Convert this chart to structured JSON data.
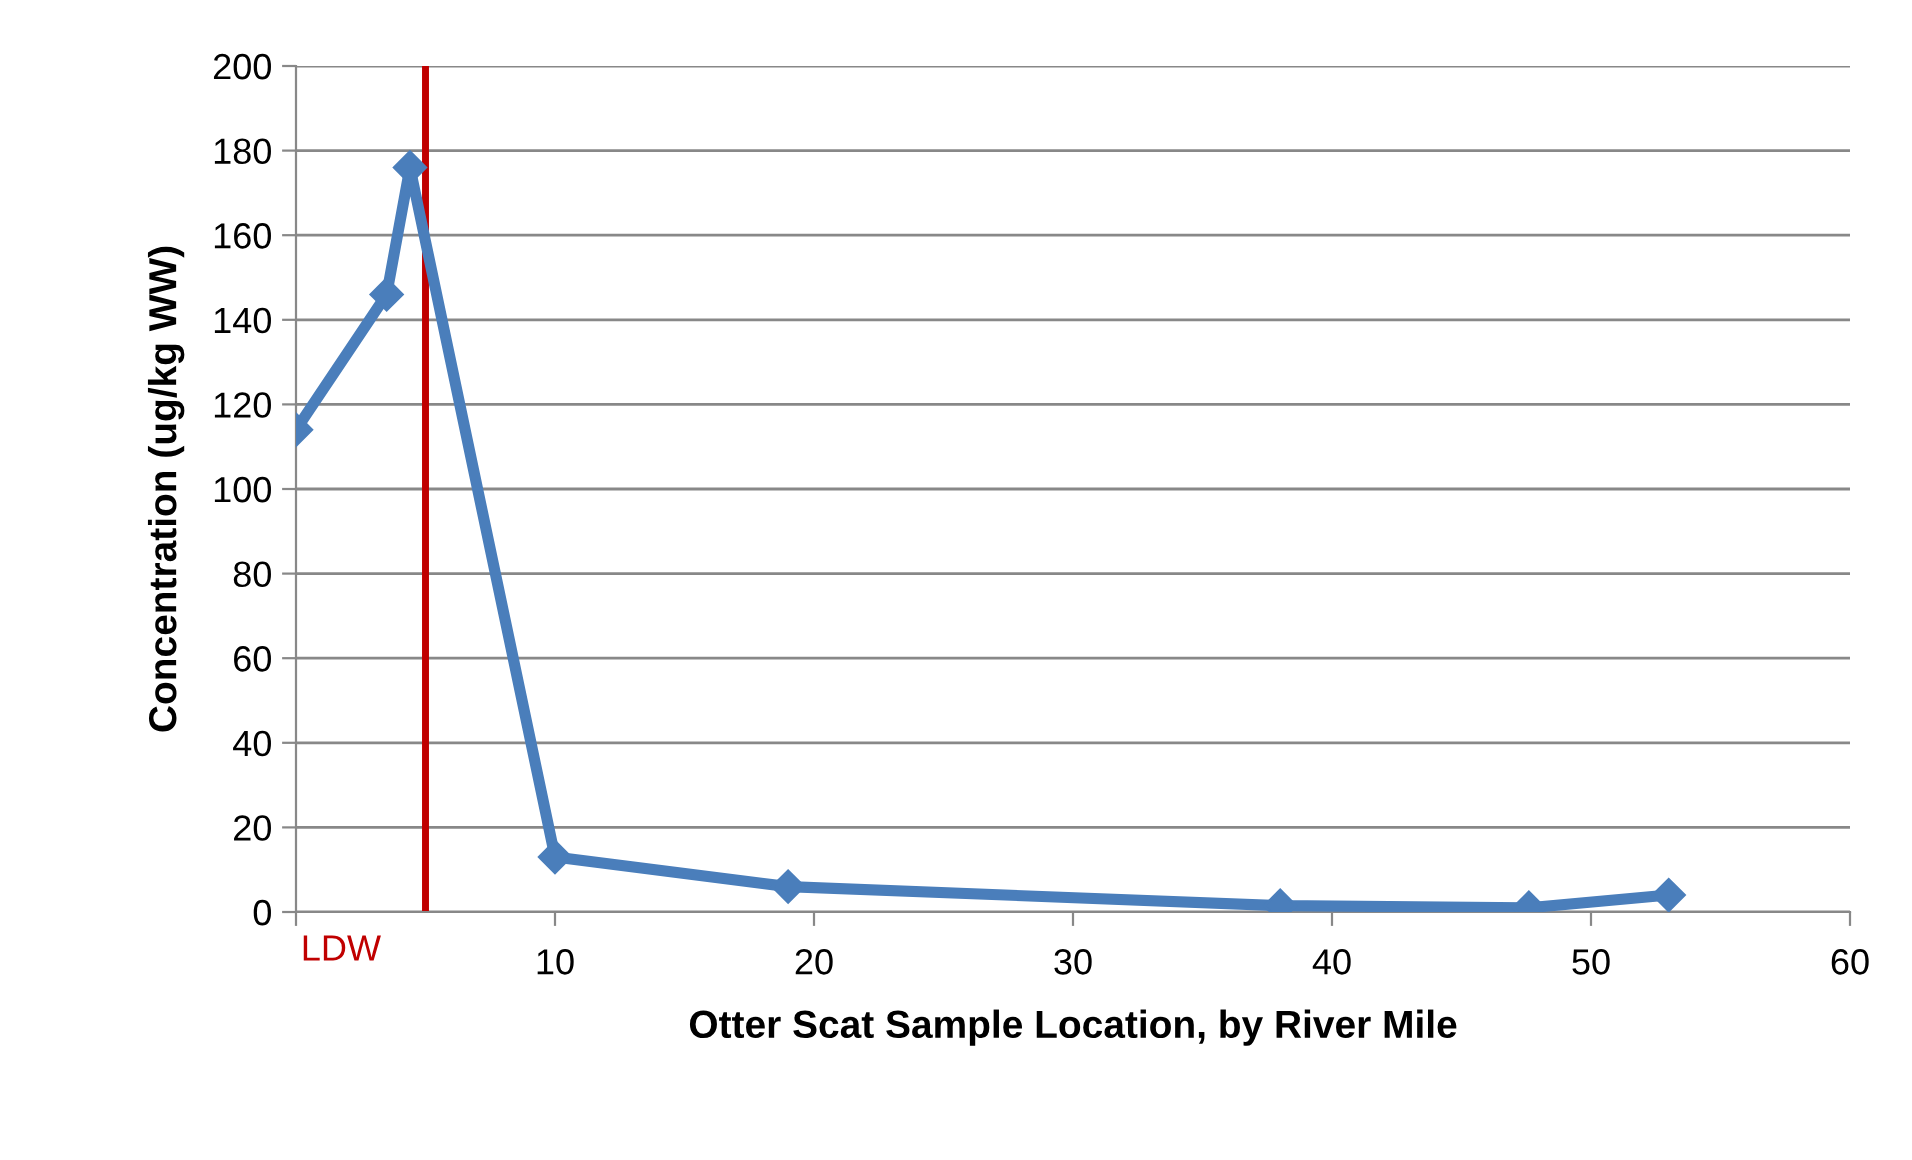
{
  "chart_data": {
    "type": "line",
    "xlabel": "Otter Scat Sample Location, by River Mile",
    "ylabel": "Concentration (ug/kg WW)",
    "x": [
      0,
      3.5,
      4.4,
      10,
      19,
      38,
      47.6,
      53
    ],
    "series": [
      {
        "color": "#4a7ebb",
        "values": [
          114,
          146,
          176,
          13,
          6,
          1.5,
          1,
          4
        ]
      }
    ],
    "xlim": [
      0,
      60
    ],
    "xticks": [
      {
        "value": 0,
        "label": null
      },
      10,
      20,
      30,
      40,
      50,
      60
    ],
    "ylim": [
      0,
      200
    ],
    "yticks": [
      0,
      20,
      40,
      60,
      80,
      100,
      120,
      140,
      160,
      180,
      200
    ],
    "grid": true,
    "marker": "diamond",
    "line_style": "solid",
    "legend": false,
    "ref_lines": [
      {
        "axis": "x",
        "value": 5,
        "label": "LDW",
        "color": "#c00000"
      }
    ]
  }
}
